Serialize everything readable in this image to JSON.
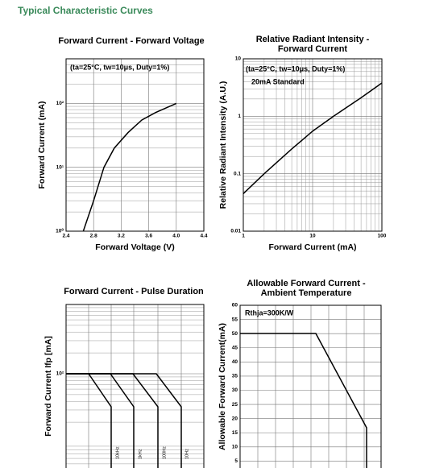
{
  "header": {
    "title": "Typical Characteristic Curves"
  },
  "chart_data": [
    {
      "type": "line",
      "title": [
        "Forward Current - Forward Voltage"
      ],
      "x_label": "Forward Voltage (V)",
      "y_label": "Forward Current (mA)",
      "annotations": [
        "(ta=25°C, tw=10μs, Duty=1%)"
      ],
      "x": [
        2.65,
        2.8,
        2.95,
        3.1,
        3.3,
        3.5,
        3.7,
        4.0
      ],
      "values": [
        1,
        3,
        10,
        20,
        35,
        55,
        72,
        100
      ],
      "color": "#000000",
      "xlim": [
        2.4,
        4.4
      ],
      "xticks": [
        2.4,
        2.8,
        3.2,
        3.6,
        {
          "value": 4,
          "label": "4.0"
        },
        4.4
      ],
      "ylim": [
        1,
        500
      ],
      "yscale": "log",
      "yticks": [
        {
          "value": 1,
          "label": "10⁰"
        },
        {
          "value": 10,
          "label": "10¹"
        },
        {
          "value": 100,
          "label": "10²"
        }
      ],
      "grid": true
    },
    {
      "type": "line",
      "title": [
        "Relative Radiant Intensity -",
        "Forward Current"
      ],
      "x_label": "Forward Current (mA)",
      "y_label": "Relative Radiant Intensity (A.U.)",
      "annotations": [
        "(ta=25°C, tw=10μs, Duty=1%)",
        "20mA Standard"
      ],
      "x": [
        1,
        2,
        5,
        10,
        20,
        50,
        100
      ],
      "values": [
        0.045,
        0.1,
        0.27,
        0.55,
        1,
        2.1,
        3.8
      ],
      "color": "#000000",
      "xlim": [
        1,
        100
      ],
      "xscale": "log",
      "xticks": [
        1,
        10,
        100
      ],
      "ylim": [
        0.01,
        10
      ],
      "yscale": "log",
      "yticks": [
        10,
        1,
        0.1,
        0.01
      ],
      "grid": true
    },
    {
      "type": "pulse",
      "title": [
        "Forward Current - Pulse Duration"
      ],
      "y_label": "Forward Current Ifp [mA]",
      "annotations": [
        "10kHz",
        "1kHz",
        "100Hz",
        "10Hz"
      ],
      "ylim": [
        1,
        1000
      ],
      "yscale": "log",
      "yticks": [
        {
          "value": 100,
          "label": "10²"
        }
      ],
      "grid": true
    },
    {
      "type": "derating",
      "title": [
        "Allowable Forward Current -",
        "Ambient Temperature"
      ],
      "y_label": "Allowable Forward Current(mA)",
      "annotations": [
        "Rthja=300K/W"
      ],
      "ylim": [
        0,
        60
      ],
      "yticks": [
        5,
        10,
        15,
        20,
        25,
        30,
        35,
        40,
        45,
        50,
        55,
        60
      ],
      "grid": true
    }
  ]
}
